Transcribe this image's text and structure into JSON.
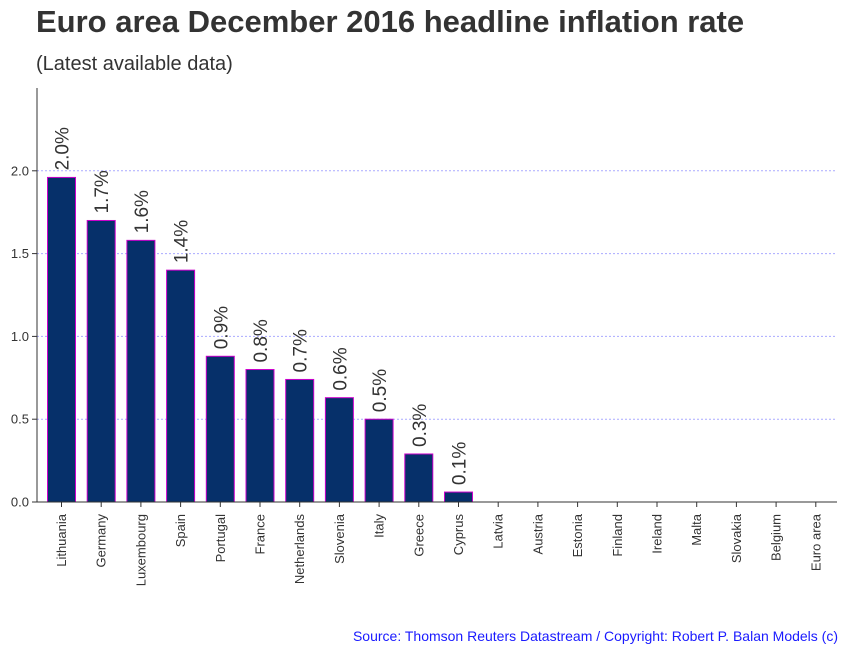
{
  "header": {
    "title": "Euro area December 2016 headline inflation rate",
    "subtitle": "(Latest available data)"
  },
  "footer": {
    "source": "Source: Thomson Reuters Datastream / Copyright: Robert P. Balan Models (c)"
  },
  "chart_data": {
    "type": "bar",
    "categories": [
      "Lithuania",
      "Germany",
      "Luxembourg",
      "Spain",
      "Portugal",
      "France",
      "Netherlands",
      "Slovenia",
      "Italy",
      "Greece",
      "Cyprus",
      "Latvia",
      "Austria",
      "Estonia",
      "Finland",
      "Ireland",
      "Malta",
      "Slovakia",
      "Belgium",
      "Euro area"
    ],
    "values": [
      1.96,
      1.7,
      1.58,
      1.4,
      0.88,
      0.8,
      0.74,
      0.63,
      0.5,
      0.29,
      0.06,
      0,
      0,
      0,
      0,
      0,
      0,
      0,
      0,
      0
    ],
    "data_labels": [
      "2.0%",
      "1.7%",
      "1.6%",
      "1.4%",
      "0.9%",
      "0.8%",
      "0.7%",
      "0.6%",
      "0.5%",
      "0.3%",
      "0.1%",
      "",
      "",
      "",
      "",
      "",
      "",
      "",
      "",
      ""
    ],
    "y_ticks": [
      "0.0",
      "0.5",
      "1.0",
      "1.5",
      "2.0"
    ],
    "ylim": [
      0,
      2.5
    ],
    "grid": "horizontal dotted",
    "bar_color": "#06306a",
    "bar_edge_color": "#cc00cc",
    "grid_color": "#aaaaff"
  }
}
